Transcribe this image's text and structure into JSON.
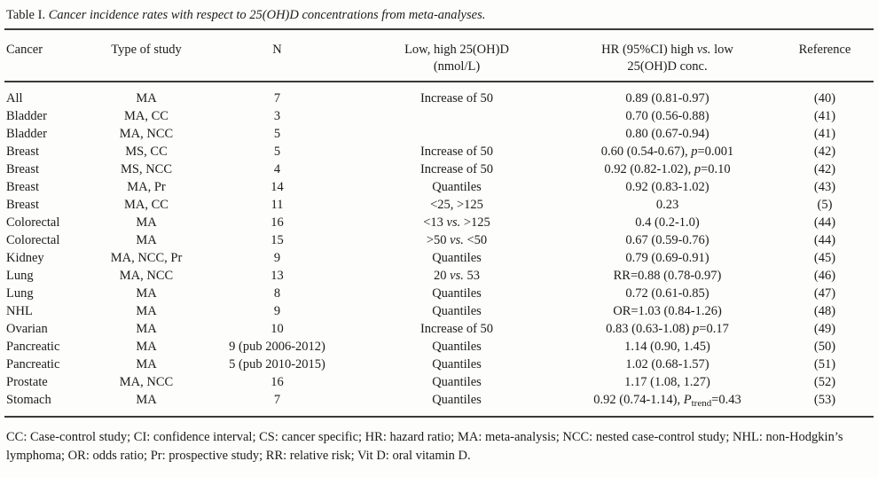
{
  "page": {
    "background_color": "#fdfdfc",
    "text_color": "#1b1b1b",
    "rule_color": "#3a3a3a"
  },
  "table": {
    "title": {
      "prefix": "Table I.",
      "rest": " Cancer incidence rates with respect to 25(OH)D concentrations from meta-analyses."
    },
    "header": {
      "cancer": "Cancer",
      "type_of_study": "Type of study",
      "n": "N",
      "low_high_line1": "Low, high 25(OH)D",
      "low_high_line2": "(nmol/L)",
      "hr_line1": "HR (95%CI) high vs. low",
      "hr_line2": "25(OH)D conc.",
      "reference": "Reference"
    },
    "rows": [
      {
        "cancer": "All",
        "type": "MA",
        "n": "7",
        "low_high": "Increase of 50",
        "hr": "0.89 (0.81-0.97)",
        "ref": "(40)"
      },
      {
        "cancer": "Bladder",
        "type": "MA, CC",
        "n": "3",
        "low_high": "",
        "hr": "0.70 (0.56-0.88)",
        "ref": "(41)"
      },
      {
        "cancer": "Bladder",
        "type": "MA, NCC",
        "n": "5",
        "low_high": "",
        "hr": "0.80 (0.67-0.94)",
        "ref": "(41)"
      },
      {
        "cancer": "Breast",
        "type": "MS, CC",
        "n": "5",
        "low_high": "Increase of 50",
        "hr": "0.60 (0.54-0.67), p=0.001",
        "ref": "(42)"
      },
      {
        "cancer": "Breast",
        "type": "MS, NCC",
        "n": "4",
        "low_high": "Increase of 50",
        "hr": "0.92 (0.82-1.02), p=0.10",
        "ref": "(42)"
      },
      {
        "cancer": "Breast",
        "type": "MA, Pr",
        "n": "14",
        "low_high": "Quantiles",
        "hr": "0.92 (0.83-1.02)",
        "ref": "(43)"
      },
      {
        "cancer": "Breast",
        "type": "MA, CC",
        "n": "11",
        "low_high": "<25, >125",
        "hr": "0.23",
        "ref": "(5)"
      },
      {
        "cancer": "Colorectal",
        "type": "MA",
        "n": "16",
        "low_high": "<13 vs. >125",
        "hr": "0.4 (0.2-1.0)",
        "ref": "(44)"
      },
      {
        "cancer": "Colorectal",
        "type": "MA",
        "n": "15",
        "low_high": ">50 vs. <50",
        "hr": "0.67 (0.59-0.76)",
        "ref": "(44)"
      },
      {
        "cancer": "Kidney",
        "type": "MA, NCC, Pr",
        "n": "9",
        "low_high": "Quantiles",
        "hr": "0.79 (0.69-0.91)",
        "ref": "(45)"
      },
      {
        "cancer": "Lung",
        "type": "MA, NCC",
        "n": "13",
        "low_high": "20 vs. 53",
        "hr": "RR=0.88 (0.78-0.97)",
        "ref": "(46)"
      },
      {
        "cancer": "Lung",
        "type": "MA",
        "n": "8",
        "low_high": "Quantiles",
        "hr": "0.72 (0.61-0.85)",
        "ref": "(47)"
      },
      {
        "cancer": "NHL",
        "type": "MA",
        "n": "9",
        "low_high": "Quantiles",
        "hr": "OR=1.03 (0.84-1.26)",
        "ref": "(48)"
      },
      {
        "cancer": "Ovarian",
        "type": "MA",
        "n": "10",
        "low_high": "Increase of 50",
        "hr": "0.83 (0.63-1.08) p=0.17",
        "ref": "(49)"
      },
      {
        "cancer": "Pancreatic",
        "type": "MA",
        "n": "9 (pub 2006-2012)",
        "low_high": "Quantiles",
        "hr": "1.14 (0.90, 1.45)",
        "ref": "(50)"
      },
      {
        "cancer": "Pancreatic",
        "type": "MA",
        "n": "5 (pub 2010-2015)",
        "low_high": "Quantiles",
        "hr": "1.02 (0.68-1.57)",
        "ref": "(51)"
      },
      {
        "cancer": "Prostate",
        "type": "MA, NCC",
        "n": "16",
        "low_high": "Quantiles",
        "hr": "1.17 (1.08, 1.27)",
        "ref": "(52)"
      },
      {
        "cancer": "Stomach",
        "type": "MA",
        "n": "7",
        "low_high": "Quantiles",
        "hr": "0.92 (0.74-1.14), P_trend=0.43",
        "ref": "(53)"
      }
    ],
    "footnote": "CC: Case-control study; CI: confidence interval; CS: cancer specific; HR: hazard ratio; MA: meta-analysis; NCC: nested case-control study; NHL: non-Hodgkin’s lymphoma; OR: odds ratio; Pr: prospective study; RR: relative risk; Vit D: oral vitamin D."
  }
}
